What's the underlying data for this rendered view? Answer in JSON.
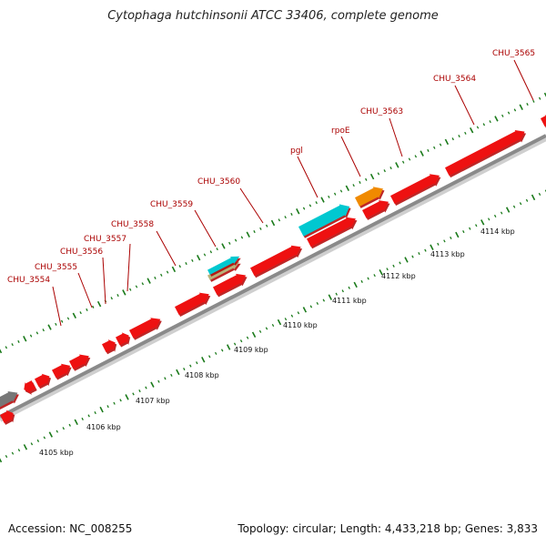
{
  "title": "Cytophaga hutchinsonii ATCC 33406, complete genome",
  "accession": "Accession: NC_008255",
  "topology": "Topology: circular; Length: 4,433,218 bp; Genes: 3,833",
  "scale_ticks": [
    "4105 kbp",
    "4106 kbp",
    "4107 kbp",
    "4108 kbp",
    "4109 kbp",
    "4110 kbp",
    "4111 kbp",
    "4112 kbp",
    "4113 kbp",
    "4114 kbp"
  ],
  "genes": [
    {
      "label": "CHU_3554"
    },
    {
      "label": "CHU_3555"
    },
    {
      "label": "CHU_3556"
    },
    {
      "label": "CHU_3557"
    },
    {
      "label": "CHU_3558"
    },
    {
      "label": "CHU_3559"
    },
    {
      "label": "CHU_3560"
    },
    {
      "label": "pgl"
    },
    {
      "label": "rpoE"
    },
    {
      "label": "CHU_3563"
    },
    {
      "label": "CHU_3564"
    },
    {
      "label": "CHU_3565"
    }
  ],
  "colors": {
    "gene": "#ee1111",
    "gene_dark": "#b30000",
    "trna": "#00c8d0",
    "rrna": "#f08a00",
    "other": "#b9b27a",
    "backbone": "#9a9a9a",
    "gc_ticks": "#1a7a1a",
    "label": "#aa0000",
    "gray_feature": "#777777"
  }
}
